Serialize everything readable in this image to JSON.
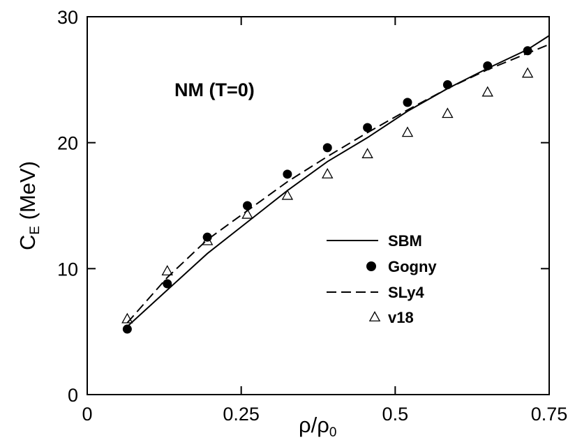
{
  "chart_data": {
    "type": "line",
    "annotation": "NM (T=0)",
    "xlabel": {
      "main": "ρ/ρ",
      "sub": "0"
    },
    "ylabel": {
      "main": "C",
      "sub": "E",
      "unit": " (MeV)"
    },
    "xlim": [
      0,
      0.75
    ],
    "ylim": [
      0,
      30
    ],
    "xticks": [
      {
        "value": 0,
        "label": "0"
      },
      {
        "value": 0.25,
        "label": "0.25"
      },
      {
        "value": 0.5,
        "label": "0.5"
      },
      {
        "value": 0.75,
        "label": "0.75"
      }
    ],
    "yticks": [
      {
        "value": 0,
        "label": "0"
      },
      {
        "value": 10,
        "label": "10"
      },
      {
        "value": 20,
        "label": "20"
      },
      {
        "value": 30,
        "label": "30"
      }
    ],
    "legend_position": "center-right",
    "series": [
      {
        "name": "SBM",
        "style": "solid-line",
        "color": "#000000",
        "x": [
          0.065,
          0.13,
          0.195,
          0.26,
          0.325,
          0.39,
          0.455,
          0.52,
          0.585,
          0.65,
          0.715,
          0.75
        ],
        "y": [
          5.4,
          8.3,
          11.2,
          13.7,
          16.2,
          18.5,
          20.4,
          22.5,
          24.3,
          25.9,
          27.4,
          28.5
        ]
      },
      {
        "name": "Gogny",
        "style": "filled-circle",
        "color": "#000000",
        "x": [
          0.065,
          0.13,
          0.195,
          0.26,
          0.325,
          0.39,
          0.455,
          0.52,
          0.585,
          0.65,
          0.715
        ],
        "y": [
          5.2,
          8.8,
          12.5,
          15.0,
          17.5,
          19.6,
          21.2,
          23.2,
          24.6,
          26.1,
          27.3
        ]
      },
      {
        "name": "SLy4",
        "style": "dashed-line",
        "color": "#000000",
        "x": [
          0.065,
          0.13,
          0.195,
          0.26,
          0.325,
          0.39,
          0.455,
          0.52,
          0.585,
          0.65,
          0.715,
          0.75
        ],
        "y": [
          5.7,
          9.3,
          12.3,
          14.6,
          16.9,
          18.9,
          20.8,
          22.6,
          24.3,
          25.8,
          27.1,
          27.8
        ]
      },
      {
        "name": "v18",
        "style": "open-triangle",
        "color": "#000000",
        "x": [
          0.065,
          0.13,
          0.195,
          0.26,
          0.325,
          0.39,
          0.455,
          0.52,
          0.585,
          0.65,
          0.715
        ],
        "y": [
          6.0,
          9.8,
          12.2,
          14.3,
          15.8,
          17.5,
          19.1,
          20.8,
          22.3,
          24.0,
          25.5
        ]
      }
    ]
  }
}
